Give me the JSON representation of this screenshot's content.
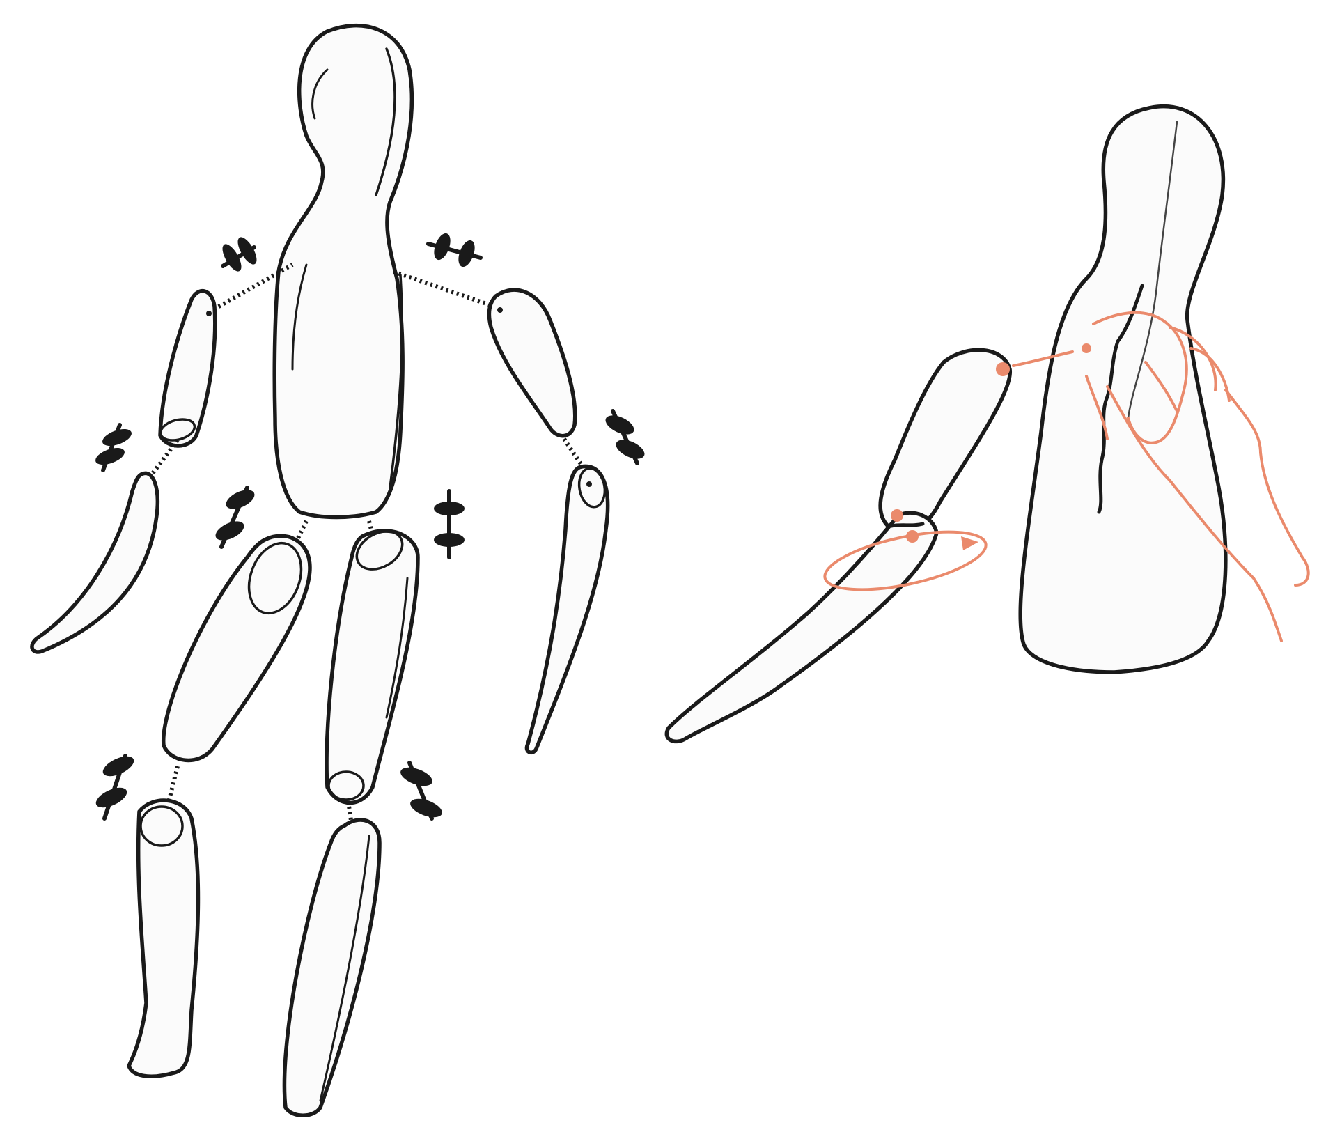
{
  "figures": [
    {
      "name": "disassembled-figure",
      "parts": [
        "head-and-torso",
        "upper-arm-left",
        "forearm-left",
        "upper-arm-right",
        "forearm-right",
        "thigh-left",
        "shin-left",
        "thigh-right",
        "shin-right"
      ],
      "connectors": [
        "elastic-cord",
        "wooden-peg"
      ]
    },
    {
      "name": "assembly-in-progress",
      "parts": [
        "head-and-torso",
        "upper-arm",
        "forearm",
        "guiding-hand"
      ],
      "accent_color": "#ea8a6c"
    }
  ],
  "colors": {
    "outline": "#1a1a1a",
    "fill": "#fbfbfb",
    "background": "#ffffff",
    "hand": "#ea8a6c"
  }
}
